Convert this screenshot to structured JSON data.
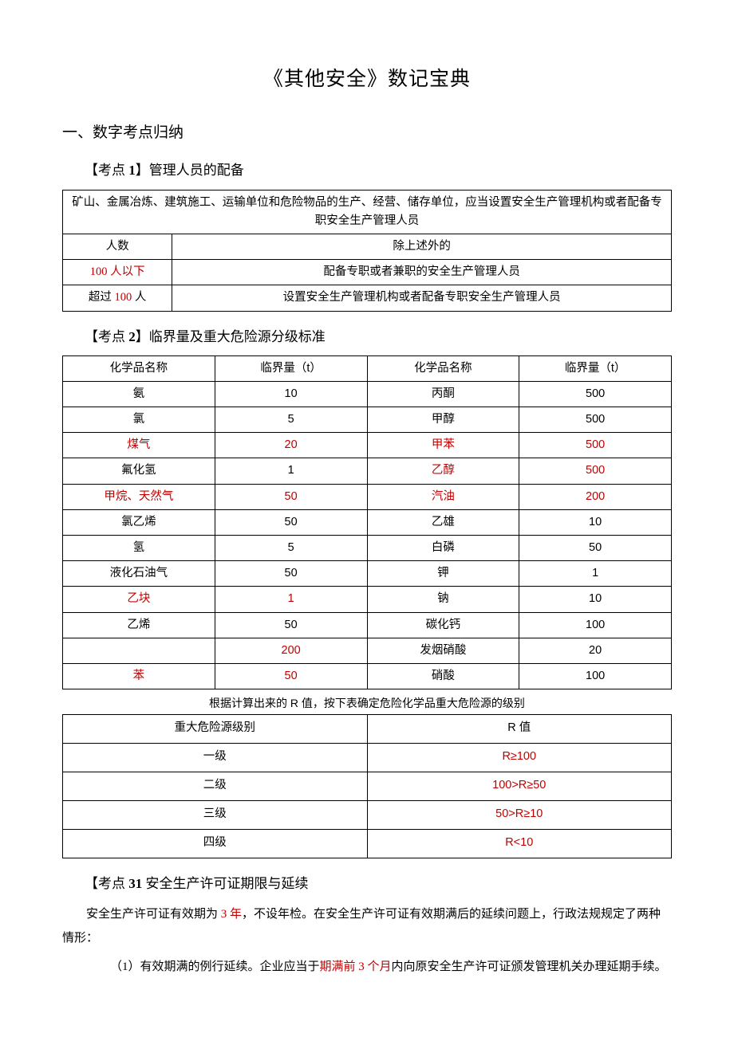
{
  "colors": {
    "red": "#c00000",
    "text": "#000000",
    "bg": "#ffffff",
    "border": "#000000"
  },
  "title": "《其他安全》数记宝典",
  "section1": "一、数字考点归纳",
  "point1": {
    "label_prefix": "【考点 ",
    "label_num": "1",
    "label_suffix": "】管理人员的配备",
    "table": {
      "header_full": "矿山、金属冶炼、建筑施工、运输单位和危险物品的生产、经营、储存单位，应当设置安全生产管理机构或者配备专职安全生产管理人员",
      "rows": [
        {
          "c1": "人数",
          "c2": "除上述外的"
        },
        {
          "c1": "100 人以下",
          "c1_red": true,
          "c2": "配备专职或者兼职的安全生产管理人员"
        },
        {
          "c1_pre": "超过 ",
          "c1_red_part": "100",
          "c1_post": " 人",
          "c2": "设置安全生产管理机构或者配备专职安全生产管理人员"
        }
      ]
    }
  },
  "point2": {
    "label_prefix": "【考点 ",
    "label_num": "2",
    "label_suffix": "】临界量及重大危险源分级标准",
    "headers": [
      "化学品名称",
      "临界量（t）",
      "化学品名称",
      "临界量（t）"
    ],
    "rows": [
      {
        "c1": "氨",
        "c2": "10",
        "c3": "丙酮",
        "c4": "500"
      },
      {
        "c1": "氯",
        "c2": "5",
        "c3": "甲醇",
        "c4": "500"
      },
      {
        "c1": "煤气",
        "c1_red": true,
        "c2": "20",
        "c2_red": true,
        "c3": "甲苯",
        "c3_red": true,
        "c4": "500",
        "c4_red": true
      },
      {
        "c1": "氟化氢",
        "c2": "1",
        "c3": "乙醇",
        "c3_red": true,
        "c4": "500",
        "c4_red": true
      },
      {
        "c1": "甲烷、天然气",
        "c1_red": true,
        "c2": "50",
        "c2_red": true,
        "c3": "汽油",
        "c3_red": true,
        "c4": "200",
        "c4_red": true
      },
      {
        "c1": "氯乙烯",
        "c2": "50",
        "c3": "乙雄",
        "c4": "10"
      },
      {
        "c1": "氢",
        "c2": "5",
        "c3": "白磷",
        "c4": "50"
      },
      {
        "c1": "液化石油气",
        "c2": "50",
        "c3": "钾",
        "c4": "1"
      },
      {
        "c1": "乙块",
        "c1_red": true,
        "c2": "1",
        "c2_red": true,
        "c3": "钠",
        "c4": "10"
      },
      {
        "c1": "乙烯",
        "c2": "50",
        "c3": "碳化钙",
        "c4": "100"
      },
      {
        "c1": "",
        "c2": "200",
        "c2_red": true,
        "c3": "发烟硝酸",
        "c4": "20"
      },
      {
        "c1": "苯",
        "c1_red": true,
        "c2": "50",
        "c2_red": true,
        "c3": "硝酸",
        "c4": "100"
      }
    ],
    "caption": "根据计算出来的 R 值，按下表确定危险化学品重大危险源的级别",
    "table3_headers": [
      "重大危险源级别",
      "R 值"
    ],
    "table3_rows": [
      {
        "c1": "一级",
        "c2": "R≥100",
        "c2_red": true
      },
      {
        "c1": "二级",
        "c2": "100>R≥50",
        "c2_red": true
      },
      {
        "c1": "三级",
        "c2": "50>R≥10",
        "c2_red": true
      },
      {
        "c1": "四级",
        "c2": "R<10",
        "c2_red": true
      }
    ]
  },
  "point3": {
    "label_prefix": "【考点 ",
    "label_num": "31",
    "label_suffix": " 安全生产许可证期限与延续",
    "para1_a": "安全生产许可证有效期为 ",
    "para1_red": "3 年",
    "para1_b": "，不设年检。在安全生产许可证有效期满后的延续问题上，行政法规规定了两种情形：",
    "para2_a": "（1）有效期满的例行延续。企业应当于",
    "para2_red": "期满前 3 个月",
    "para2_b": "内向原安全生产许可证颁发管理机关办理延期手续。"
  }
}
